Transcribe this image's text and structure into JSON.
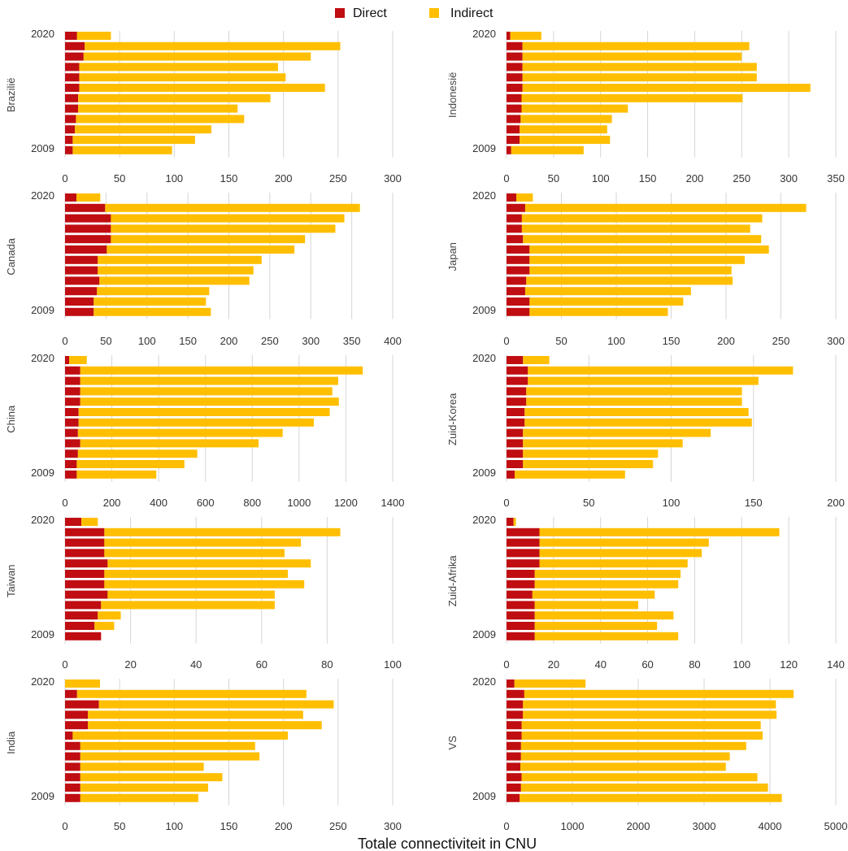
{
  "legend": {
    "direct_label": "Direct",
    "indirect_label": "Indirect"
  },
  "colors": {
    "direct": "#c00d12",
    "indirect": "#ffbf00",
    "grid": "#d6d6d6",
    "text": "#333333"
  },
  "xlabel": "Totale connectiviteit in CNU",
  "chart_data": [
    {
      "type": "bar",
      "orientation": "horizontal",
      "stacked": true,
      "label": "Brazilië",
      "categories": [
        "2020",
        "2019",
        "2018",
        "2017",
        "2016",
        "2015",
        "2014",
        "2013",
        "2012",
        "2011",
        "2010",
        "2009"
      ],
      "year_labels": [
        "2020",
        "2009"
      ],
      "xlim": [
        0,
        300
      ],
      "xticks": [
        "0",
        "50",
        "100",
        "150",
        "200",
        "250",
        "300"
      ],
      "series": [
        {
          "name": "Direct",
          "values": [
            11,
            18,
            17,
            13,
            13,
            13,
            12,
            12,
            10,
            9,
            7,
            7
          ]
        },
        {
          "name": "Indirect",
          "values": [
            31,
            234,
            208,
            182,
            189,
            225,
            176,
            146,
            154,
            125,
            112,
            91
          ]
        }
      ]
    },
    {
      "type": "bar",
      "orientation": "horizontal",
      "stacked": true,
      "label": "Indonesië",
      "categories": [
        "2020",
        "2019",
        "2018",
        "2017",
        "2016",
        "2015",
        "2014",
        "2013",
        "2012",
        "2011",
        "2010",
        "2009"
      ],
      "year_labels": [
        "2020",
        "2009"
      ],
      "xlim": [
        0,
        350
      ],
      "xticks": [
        "0",
        "50",
        "100",
        "150",
        "200",
        "250",
        "300",
        "350"
      ],
      "series": [
        {
          "name": "Direct",
          "values": [
            4,
            17,
            17,
            17,
            17,
            17,
            16,
            16,
            15,
            14,
            14,
            5
          ]
        },
        {
          "name": "Indirect",
          "values": [
            33,
            241,
            233,
            249,
            249,
            306,
            235,
            113,
            97,
            93,
            96,
            77
          ]
        }
      ]
    },
    {
      "type": "bar",
      "orientation": "horizontal",
      "stacked": true,
      "label": "Canada",
      "categories": [
        "2020",
        "2019",
        "2018",
        "2017",
        "2016",
        "2015",
        "2014",
        "2013",
        "2012",
        "2011",
        "2010",
        "2009"
      ],
      "year_labels": [
        "2020",
        "2009"
      ],
      "xlim": [
        0,
        400
      ],
      "xticks": [
        "0",
        "50",
        "100",
        "150",
        "200",
        "250",
        "300",
        "350",
        "400"
      ],
      "series": [
        {
          "name": "Direct",
          "values": [
            14,
            49,
            56,
            56,
            56,
            51,
            40,
            40,
            42,
            39,
            35,
            35
          ]
        },
        {
          "name": "Indirect",
          "values": [
            29,
            311,
            285,
            274,
            237,
            229,
            200,
            190,
            183,
            137,
            137,
            143
          ]
        }
      ]
    },
    {
      "type": "bar",
      "orientation": "horizontal",
      "stacked": true,
      "label": "Japan",
      "categories": [
        "2020",
        "2019",
        "2018",
        "2017",
        "2016",
        "2015",
        "2014",
        "2013",
        "2012",
        "2011",
        "2010",
        "2009"
      ],
      "year_labels": [
        "2020",
        "2009"
      ],
      "xlim": [
        0,
        300
      ],
      "xticks": [
        "0",
        "50",
        "100",
        "150",
        "200",
        "250",
        "300"
      ],
      "series": [
        {
          "name": "Direct",
          "values": [
            9,
            17,
            14,
            14,
            15,
            21,
            21,
            21,
            18,
            17,
            21,
            21
          ]
        },
        {
          "name": "Indirect",
          "values": [
            15,
            256,
            219,
            208,
            217,
            218,
            196,
            184,
            188,
            151,
            140,
            126
          ]
        }
      ]
    },
    {
      "type": "bar",
      "orientation": "horizontal",
      "stacked": true,
      "label": "China",
      "categories": [
        "2020",
        "2019",
        "2018",
        "2017",
        "2016",
        "2015",
        "2014",
        "2013",
        "2012",
        "2011",
        "2010",
        "2009"
      ],
      "year_labels": [
        "2020",
        "2009"
      ],
      "xlim": [
        0,
        1400
      ],
      "xticks": [
        "0",
        "200",
        "400",
        "600",
        "800",
        "1000",
        "1200",
        "1400"
      ],
      "series": [
        {
          "name": "Direct",
          "values": [
            18,
            65,
            65,
            65,
            65,
            58,
            58,
            55,
            65,
            55,
            50,
            50
          ]
        },
        {
          "name": "Indirect",
          "values": [
            75,
            1207,
            1102,
            1077,
            1105,
            1073,
            1005,
            875,
            762,
            510,
            460,
            340
          ]
        }
      ]
    },
    {
      "type": "bar",
      "orientation": "horizontal",
      "stacked": true,
      "label": "Zuid-Korea",
      "categories": [
        "2020",
        "2019",
        "2018",
        "2017",
        "2016",
        "2015",
        "2014",
        "2013",
        "2012",
        "2011",
        "2010",
        "2009"
      ],
      "year_labels": [
        "2020",
        "2009"
      ],
      "xlim": [
        0,
        200
      ],
      "xticks": [
        "0",
        "50",
        "100",
        "150",
        "200"
      ],
      "series": [
        {
          "name": "Direct",
          "values": [
            10,
            13,
            13,
            12,
            12,
            11,
            11,
            10,
            10,
            10,
            10,
            5
          ]
        },
        {
          "name": "Indirect",
          "values": [
            16,
            161,
            140,
            131,
            131,
            136,
            138,
            114,
            97,
            82,
            79,
            67
          ]
        }
      ]
    },
    {
      "type": "bar",
      "orientation": "horizontal",
      "stacked": true,
      "label": "Taiwan",
      "categories": [
        "2020",
        "2019",
        "2018",
        "2017",
        "2016",
        "2015",
        "2014",
        "2013",
        "2012",
        "2011",
        "2010",
        "2009"
      ],
      "year_labels": [
        "2020",
        "2009"
      ],
      "xlim": [
        0,
        100
      ],
      "xticks": [
        "0",
        "20",
        "40",
        "60",
        "80",
        "100"
      ],
      "series": [
        {
          "name": "Direct",
          "values": [
            5,
            12,
            12,
            12,
            13,
            12,
            12,
            13,
            11,
            10,
            9,
            11
          ]
        },
        {
          "name": "Indirect",
          "values": [
            5,
            72,
            60,
            55,
            62,
            56,
            61,
            51,
            53,
            7,
            6,
            0
          ]
        }
      ]
    },
    {
      "type": "bar",
      "orientation": "horizontal",
      "stacked": true,
      "label": "Zuid-Afrika",
      "categories": [
        "2020",
        "2019",
        "2018",
        "2017",
        "2016",
        "2015",
        "2014",
        "2013",
        "2012",
        "2011",
        "2010",
        "2009"
      ],
      "year_labels": [
        "2020",
        "2009"
      ],
      "xlim": [
        0,
        140
      ],
      "xticks": [
        "0",
        "20",
        "40",
        "60",
        "80",
        "100",
        "120",
        "140"
      ],
      "series": [
        {
          "name": "Direct",
          "values": [
            3,
            14,
            14,
            14,
            14,
            12,
            12,
            11,
            12,
            12,
            12,
            12
          ]
        },
        {
          "name": "Indirect",
          "values": [
            1,
            102,
            72,
            69,
            63,
            62,
            61,
            52,
            44,
            59,
            52,
            61
          ]
        }
      ]
    },
    {
      "type": "bar",
      "orientation": "horizontal",
      "stacked": true,
      "label": "India",
      "categories": [
        "2020",
        "2019",
        "2018",
        "2017",
        "2016",
        "2015",
        "2014",
        "2013",
        "2012",
        "2011",
        "2010",
        "2009"
      ],
      "year_labels": [
        "2020",
        "2009"
      ],
      "xlim": [
        0,
        300
      ],
      "xticks": [
        "0",
        "50",
        "100",
        "150",
        "200",
        "250",
        "300"
      ],
      "series": [
        {
          "name": "Direct",
          "values": [
            0,
            11,
            31,
            21,
            21,
            7,
            14,
            14,
            14,
            14,
            14,
            14
          ]
        },
        {
          "name": "Indirect",
          "values": [
            32,
            210,
            215,
            197,
            214,
            197,
            160,
            164,
            113,
            130,
            117,
            108
          ]
        }
      ]
    },
    {
      "type": "bar",
      "orientation": "horizontal",
      "stacked": true,
      "label": "VS",
      "categories": [
        "2020",
        "2019",
        "2018",
        "2017",
        "2016",
        "2015",
        "2014",
        "2013",
        "2012",
        "2011",
        "2010",
        "2009"
      ],
      "year_labels": [
        "2020",
        "2009"
      ],
      "xlim": [
        0,
        5000
      ],
      "xticks": [
        "0",
        "1000",
        "2000",
        "3000",
        "4000",
        "5000"
      ],
      "series": [
        {
          "name": "Direct",
          "values": [
            120,
            270,
            250,
            250,
            230,
            230,
            220,
            220,
            210,
            230,
            220,
            200
          ]
        },
        {
          "name": "Indirect",
          "values": [
            1080,
            4090,
            3840,
            3850,
            3630,
            3660,
            3420,
            3170,
            3120,
            3580,
            3750,
            3980
          ]
        }
      ]
    }
  ]
}
